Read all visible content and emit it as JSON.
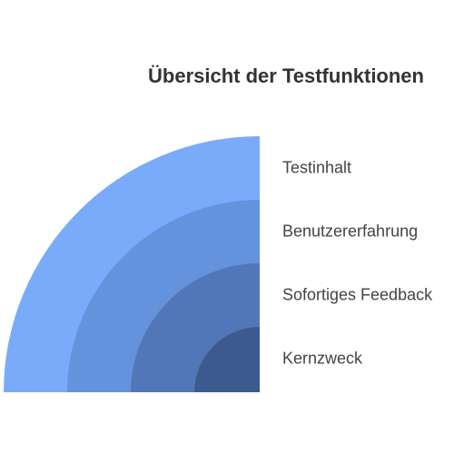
{
  "title": "Übersicht der Testfunktionen",
  "layers": [
    {
      "label": "Testinhalt",
      "color": "#7aabfb"
    },
    {
      "label": "Benutzererfahrung",
      "color": "#6592dc"
    },
    {
      "label": "Sofortiges Feedback",
      "color": "#5277b8"
    },
    {
      "label": "Kernzweck",
      "color": "#3d5a8e"
    }
  ]
}
